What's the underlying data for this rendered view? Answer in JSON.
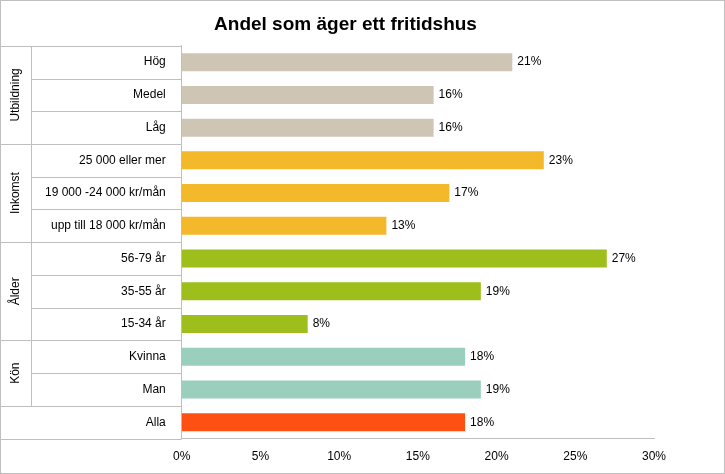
{
  "chart_data": {
    "type": "bar",
    "title": "Andel som äger ett fritidshus",
    "orientation": "horizontal",
    "categories": [
      "Hög",
      "Medel",
      "Låg",
      "25 000 eller mer",
      "19 000 -24 000 kr/mån",
      "upp till 18 000 kr/mån",
      "56-79 år",
      "35-55 år",
      "15-34 år",
      "Kvinna",
      "Man",
      "Alla"
    ],
    "category_groups": [
      "Utbildning",
      "Utbildning",
      "Utbildning",
      "Inkomst",
      "Inkomst",
      "Inkomst",
      "Ålder",
      "Ålder",
      "Ålder",
      "Kön",
      "Kön",
      null
    ],
    "values": [
      21,
      16,
      16,
      23,
      17,
      13,
      27,
      19,
      8,
      18,
      19,
      18
    ],
    "value_labels": [
      "21%",
      "16%",
      "16%",
      "23%",
      "17%",
      "13%",
      "27%",
      "19%",
      "8%",
      "18%",
      "19%",
      "18%"
    ],
    "colors": [
      "#cfc5b5",
      "#cfc5b5",
      "#cfc5b5",
      "#f4b92b",
      "#f4b92b",
      "#f4b92b",
      "#9dbe1b",
      "#9dbe1b",
      "#9dbe1b",
      "#9bcfbd",
      "#9bcfbd",
      "#ff5014"
    ],
    "xlim": [
      0,
      30
    ],
    "xticks": [
      {
        "value": 0,
        "label": "0%"
      },
      {
        "value": 5,
        "label": "5%"
      },
      {
        "value": 10,
        "label": "10%"
      },
      {
        "value": 15,
        "label": "15%"
      },
      {
        "value": 20,
        "label": "20%"
      },
      {
        "value": 25,
        "label": "25%"
      },
      {
        "value": 30,
        "label": "30%"
      }
    ],
    "grid": false,
    "data_labels": true
  }
}
